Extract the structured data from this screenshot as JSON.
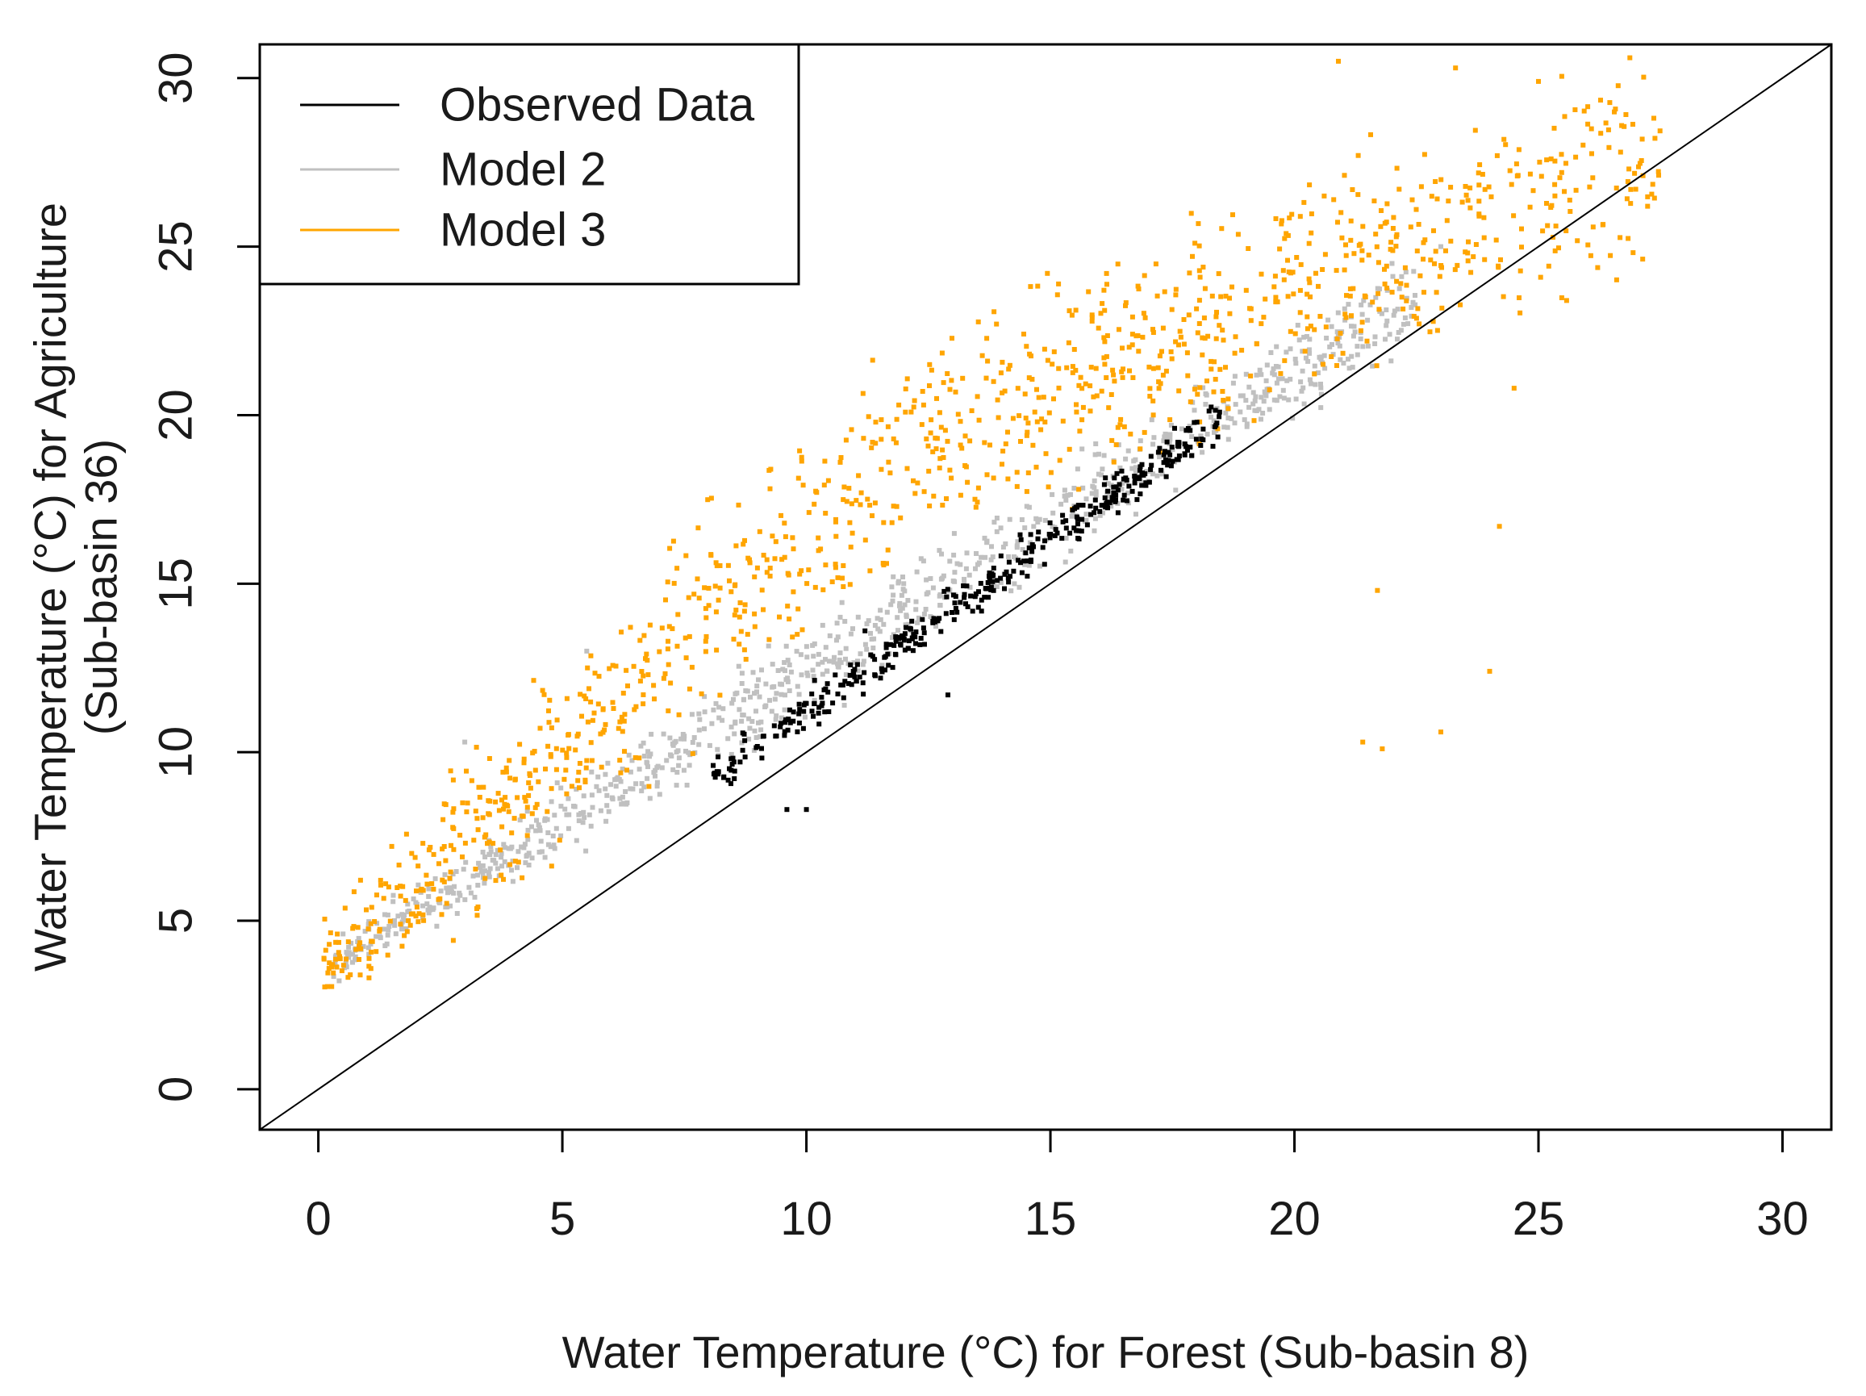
{
  "chart_data": {
    "type": "scatter",
    "xlabel": "Water Temperature (°C) for Forest (Sub-basin 8)",
    "ylabel": [
      "Water Temperature (°C) for Agriculture",
      "(Sub-basin 36)"
    ],
    "xlim": [
      -1.2,
      31
    ],
    "ylim": [
      -1.2,
      31
    ],
    "x_ticks": [
      0,
      5,
      10,
      15,
      20,
      25,
      30
    ],
    "y_ticks": [
      0,
      5,
      10,
      15,
      20,
      25,
      30
    ],
    "grid": false,
    "reference_line": {
      "type": "1:1",
      "from": [
        -1.2,
        -1.2
      ],
      "to": [
        31,
        31
      ],
      "color": "#000000"
    },
    "legend": {
      "position": "top-left",
      "entries": [
        {
          "label": "Observed Data",
          "color": "#000000"
        },
        {
          "label": "Model 2",
          "color": "#c0c0c0"
        },
        {
          "label": "Model 3",
          "color": "#ffa500"
        }
      ]
    },
    "series": [
      {
        "name": "Model 2",
        "color": "#c0c0c0",
        "count": 900,
        "seed": 11,
        "x_range": [
          0.3,
          22.5
        ],
        "offset_start": 3.5,
        "offset_end": 1.0,
        "spread": 1.2,
        "extra_points": [
          [
            3.0,
            10.3
          ],
          [
            5.5,
            13.0
          ],
          [
            22.0,
            24.5
          ],
          [
            23.0,
            25.0
          ]
        ]
      },
      {
        "name": "Model 3",
        "color": "#ffa500",
        "count": 1150,
        "seed": 7,
        "x_range": [
          0.1,
          27.5
        ],
        "offset_start": 3.5,
        "offset_end": 0.5,
        "peak_offset": 7.0,
        "peak_x": 12.0,
        "spread": 3.0,
        "extra_points": [
          [
            21.7,
            14.8
          ],
          [
            21.4,
            10.3
          ],
          [
            21.8,
            10.1
          ],
          [
            23.0,
            10.6
          ],
          [
            24.0,
            12.4
          ],
          [
            24.2,
            16.7
          ],
          [
            24.5,
            20.8
          ],
          [
            20.9,
            30.5
          ],
          [
            23.3,
            30.3
          ],
          [
            25.0,
            29.9
          ]
        ]
      },
      {
        "name": "Observed Data",
        "color": "#000000",
        "count": 380,
        "seed": 3,
        "x_range": [
          8.0,
          18.5
        ],
        "offset_start": 1.2,
        "offset_end": 1.4,
        "spread": 0.6,
        "extra_points": [
          [
            9.6,
            8.3
          ],
          [
            10.0,
            8.3
          ],
          [
            12.9,
            11.7
          ],
          [
            11.2,
            13.6
          ]
        ]
      }
    ]
  }
}
